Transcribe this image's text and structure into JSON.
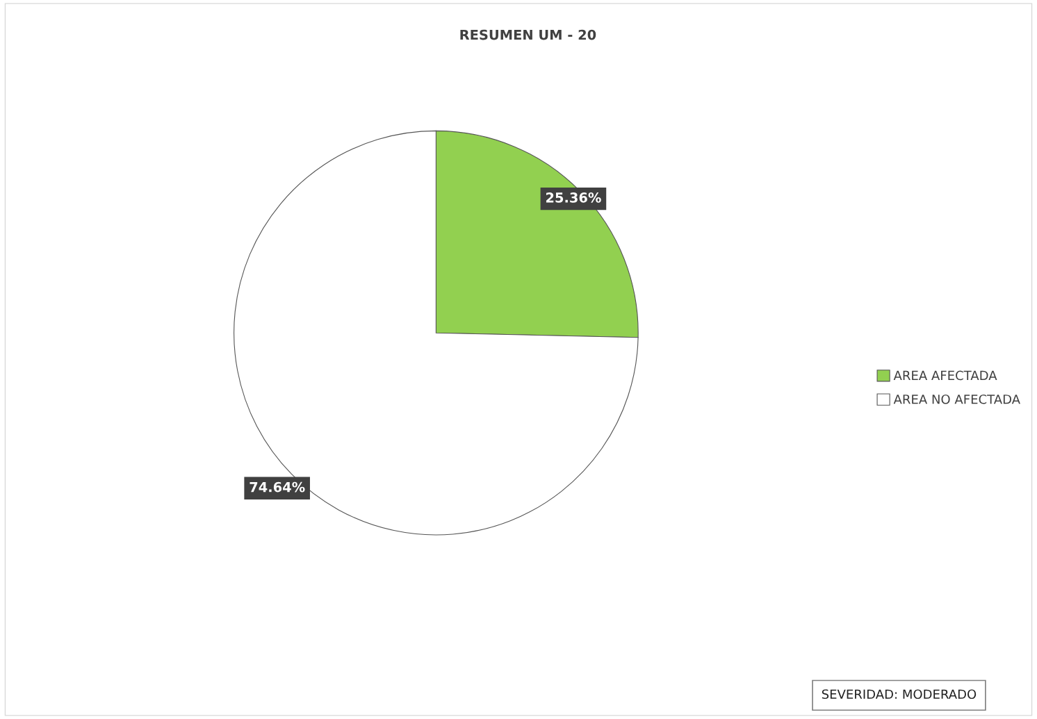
{
  "chart_data": {
    "type": "pie",
    "title": "RESUMEN UM - 20",
    "categories": [
      "AREA AFECTADA",
      "AREA NO AFECTADA"
    ],
    "values": [
      25.36,
      74.64
    ],
    "colors": [
      "#92d050",
      "#ffffff"
    ],
    "value_labels": [
      "25.36%",
      "74.64%"
    ],
    "legend": "right",
    "annotations": [
      "SEVERIDAD: MODERADO"
    ]
  }
}
